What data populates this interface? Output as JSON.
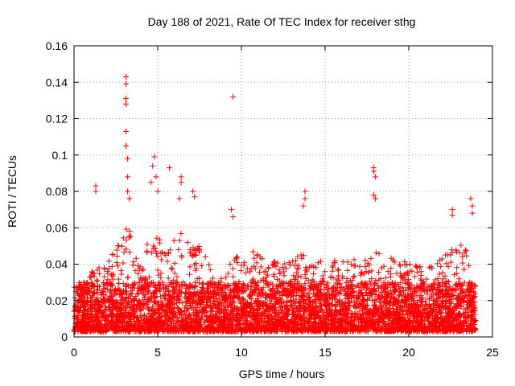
{
  "chart_data": {
    "type": "scatter",
    "title": "Day 188 of 2021, Rate Of TEC Index for receiver sthg",
    "xlabel": "GPS time / hours",
    "ylabel": "ROTI / TECUs",
    "xlim": [
      0,
      25
    ],
    "ylim": [
      0,
      0.16
    ],
    "xticks": [
      0,
      5,
      10,
      15,
      20,
      25
    ],
    "xtick_labels": [
      "0",
      "5",
      "10",
      "15",
      "20",
      "25"
    ],
    "yticks": [
      0,
      0.02,
      0.04,
      0.06,
      0.08,
      0.1,
      0.12,
      0.14,
      0.16
    ],
    "ytick_labels": [
      "0",
      "0.02",
      "0.04",
      "0.06",
      "0.08",
      "0.1",
      "0.12",
      "0.14",
      "0.16"
    ],
    "grid": true,
    "marker": "+",
    "color": "#ff0000",
    "series": [
      {
        "name": "ROTI",
        "x_range_hours": [
          0,
          24
        ],
        "baseline_roti_range": [
          0.003,
          0.03
        ],
        "notable_points": [
          {
            "x": 1.3,
            "y": 0.083
          },
          {
            "x": 1.3,
            "y": 0.08
          },
          {
            "x": 3.1,
            "y": 0.143
          },
          {
            "x": 3.1,
            "y": 0.139
          },
          {
            "x": 3.1,
            "y": 0.131
          },
          {
            "x": 3.1,
            "y": 0.128
          },
          {
            "x": 3.1,
            "y": 0.113
          },
          {
            "x": 3.1,
            "y": 0.105
          },
          {
            "x": 3.2,
            "y": 0.098
          },
          {
            "x": 3.2,
            "y": 0.088
          },
          {
            "x": 3.2,
            "y": 0.08
          },
          {
            "x": 3.3,
            "y": 0.076
          },
          {
            "x": 4.8,
            "y": 0.099
          },
          {
            "x": 4.7,
            "y": 0.094
          },
          {
            "x": 4.9,
            "y": 0.088
          },
          {
            "x": 4.6,
            "y": 0.085
          },
          {
            "x": 5.0,
            "y": 0.08
          },
          {
            "x": 5.7,
            "y": 0.093
          },
          {
            "x": 6.4,
            "y": 0.088
          },
          {
            "x": 6.4,
            "y": 0.085
          },
          {
            "x": 6.3,
            "y": 0.076
          },
          {
            "x": 7.1,
            "y": 0.08
          },
          {
            "x": 7.2,
            "y": 0.077
          },
          {
            "x": 9.5,
            "y": 0.132
          },
          {
            "x": 9.4,
            "y": 0.07
          },
          {
            "x": 9.5,
            "y": 0.066
          },
          {
            "x": 13.8,
            "y": 0.08
          },
          {
            "x": 13.8,
            "y": 0.076
          },
          {
            "x": 13.7,
            "y": 0.072
          },
          {
            "x": 17.9,
            "y": 0.093
          },
          {
            "x": 17.9,
            "y": 0.091
          },
          {
            "x": 18.0,
            "y": 0.088
          },
          {
            "x": 17.9,
            "y": 0.078
          },
          {
            "x": 18.0,
            "y": 0.076
          },
          {
            "x": 22.6,
            "y": 0.07
          },
          {
            "x": 22.6,
            "y": 0.067
          },
          {
            "x": 23.7,
            "y": 0.076
          },
          {
            "x": 23.8,
            "y": 0.072
          },
          {
            "x": 23.8,
            "y": 0.068
          }
        ]
      }
    ]
  }
}
